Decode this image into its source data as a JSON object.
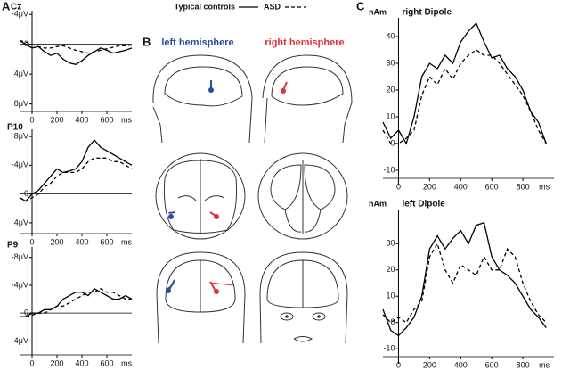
{
  "panels": {
    "a": "A",
    "b": "B",
    "c": "C"
  },
  "hemispheres": {
    "left": "left hemisphere",
    "right": "right hemisphere"
  },
  "chart_data": [
    {
      "type": "line",
      "title": "Cz",
      "x_label": "ms",
      "x": [
        -100,
        -50,
        0,
        50,
        100,
        150,
        200,
        250,
        300,
        350,
        400,
        450,
        500,
        550,
        600,
        650,
        700,
        750,
        800
      ],
      "xlim": [
        -100,
        800
      ],
      "xticks": [
        0,
        200,
        400,
        600
      ],
      "ylim": [
        -4.5,
        9
      ],
      "y_inverted": true,
      "zero_line": true,
      "yticks": [
        {
          "value": -4,
          "label": "-4μV"
        },
        0,
        {
          "value": 4,
          "label": "4μV"
        },
        {
          "value": 8,
          "label": "8μV"
        }
      ],
      "series": [
        {
          "name": "Typical controls",
          "color": "#000000",
          "linestyle": "solid",
          "values": [
            -0.5,
            0,
            0.5,
            0.3,
            1,
            1.5,
            1.2,
            2,
            2.5,
            2.7,
            2.2,
            1.5,
            1,
            0.5,
            0.8,
            1.2,
            1,
            0.8,
            0.5
          ]
        },
        {
          "name": "ASD",
          "color": "#000000",
          "linestyle": "dashed",
          "values": [
            -0.5,
            -0.3,
            0,
            0.3,
            0.5,
            0.5,
            0.3,
            0.2,
            0.5,
            0.8,
            1,
            1.2,
            1,
            0.8,
            0.6,
            0.4,
            0.2,
            0.2,
            0.1
          ]
        }
      ]
    },
    {
      "type": "line",
      "title": "P10",
      "x_label": "ms",
      "x": [
        -100,
        -50,
        0,
        50,
        100,
        150,
        200,
        250,
        300,
        350,
        400,
        450,
        500,
        550,
        600,
        650,
        700,
        750,
        800
      ],
      "xlim": [
        -100,
        800
      ],
      "xticks": [
        0,
        200,
        400,
        600
      ],
      "ylim": [
        -9,
        5.5
      ],
      "y_inverted": true,
      "zero_line": true,
      "yticks": [
        {
          "value": -8,
          "label": "-8μV"
        },
        {
          "value": -4,
          "label": "-4μV"
        },
        0,
        {
          "value": 4,
          "label": "4μV"
        }
      ],
      "series": [
        {
          "name": "Typical controls",
          "color": "#000000",
          "linestyle": "solid",
          "values": [
            0.5,
            1,
            0,
            -0.5,
            -1.5,
            -2.5,
            -3.5,
            -3,
            -3.2,
            -3.5,
            -4.5,
            -6.5,
            -7.5,
            -6.5,
            -6,
            -5.5,
            -5,
            -4.5,
            -4
          ]
        },
        {
          "name": "ASD",
          "color": "#000000",
          "linestyle": "dashed",
          "values": [
            0.5,
            1,
            0.5,
            0,
            -1,
            -1.5,
            -2.5,
            -3,
            -3,
            -3,
            -3.5,
            -4.5,
            -5,
            -5,
            -5,
            -4.5,
            -4.5,
            -4,
            -3.5
          ]
        }
      ]
    },
    {
      "type": "line",
      "title": "P9",
      "x_label": "ms",
      "x": [
        -100,
        -50,
        0,
        50,
        100,
        150,
        200,
        250,
        300,
        350,
        400,
        450,
        500,
        550,
        600,
        650,
        700,
        750,
        800
      ],
      "xlim": [
        -100,
        800
      ],
      "xticks": [
        0,
        200,
        400,
        600
      ],
      "ylim": [
        -9.5,
        6
      ],
      "y_inverted": true,
      "zero_line": true,
      "yticks": [
        {
          "value": -8,
          "label": "-8μV"
        },
        {
          "value": -4,
          "label": "-4μV"
        },
        0,
        {
          "value": 4,
          "label": "4μV"
        }
      ],
      "series": [
        {
          "name": "Typical controls",
          "color": "#000000",
          "linestyle": "solid",
          "values": [
            0.5,
            0.5,
            0,
            0,
            -0.5,
            -0.5,
            -1,
            -2,
            -2.5,
            -3,
            -3,
            -2.5,
            -3.5,
            -3,
            -2.5,
            -2,
            -2,
            -2.5,
            -2
          ]
        },
        {
          "name": "ASD",
          "color": "#000000",
          "linestyle": "dashed",
          "values": [
            0.5,
            0.5,
            0.3,
            0,
            0,
            -0.5,
            -1,
            -1,
            -1.5,
            -2,
            -2.5,
            -3,
            -3,
            -3.5,
            -3,
            -3,
            -2.5,
            -2,
            -2
          ]
        }
      ]
    },
    {
      "type": "line",
      "title": "right Dipole",
      "y_label": "nAm",
      "x_label": "ms",
      "x": [
        -100,
        -50,
        0,
        50,
        100,
        150,
        200,
        250,
        300,
        350,
        400,
        450,
        500,
        550,
        600,
        650,
        700,
        750,
        800,
        850,
        900,
        950
      ],
      "xlim": [
        -100,
        1000
      ],
      "xticks": [
        0,
        200,
        400,
        600,
        800
      ],
      "ylim": [
        -13,
        47
      ],
      "y_inverted": false,
      "zero_line": false,
      "yticks": [
        -10,
        0,
        10,
        20,
        30,
        40
      ],
      "series": [
        {
          "name": "Typical controls",
          "color": "#000000",
          "linestyle": "solid",
          "values": [
            8,
            2,
            5,
            0,
            10,
            25,
            30,
            28,
            33,
            30,
            38,
            42,
            45,
            38,
            32,
            33,
            28,
            25,
            20,
            12,
            8,
            0
          ]
        },
        {
          "name": "ASD",
          "color": "#000000",
          "linestyle": "dashed",
          "values": [
            5,
            0,
            0,
            2,
            5,
            18,
            25,
            22,
            28,
            24,
            30,
            33,
            35,
            33,
            33,
            30,
            26,
            22,
            18,
            12,
            5,
            0
          ]
        }
      ]
    },
    {
      "type": "line",
      "title": "left Dipole",
      "y_label": "nAm",
      "x_label": "ms",
      "x": [
        -100,
        -50,
        0,
        50,
        100,
        150,
        200,
        250,
        300,
        350,
        400,
        450,
        500,
        550,
        600,
        650,
        700,
        750,
        800,
        850,
        900,
        950
      ],
      "xlim": [
        -100,
        1000
      ],
      "xticks": [
        0,
        200,
        400,
        600,
        800
      ],
      "ylim": [
        -13,
        43
      ],
      "y_inverted": false,
      "zero_line": false,
      "yticks": [
        -10,
        0,
        10,
        20,
        30
      ],
      "series": [
        {
          "name": "Typical controls",
          "color": "#000000",
          "linestyle": "solid",
          "values": [
            5,
            -3,
            -5,
            -2,
            2,
            10,
            28,
            33,
            28,
            32,
            35,
            30,
            37,
            38,
            25,
            20,
            18,
            15,
            10,
            5,
            2,
            -2
          ]
        },
        {
          "name": "ASD",
          "color": "#000000",
          "linestyle": "dashed",
          "values": [
            3,
            0,
            2,
            0,
            5,
            8,
            25,
            30,
            20,
            15,
            22,
            20,
            18,
            25,
            20,
            20,
            28,
            25,
            15,
            8,
            3,
            0
          ]
        }
      ]
    }
  ]
}
